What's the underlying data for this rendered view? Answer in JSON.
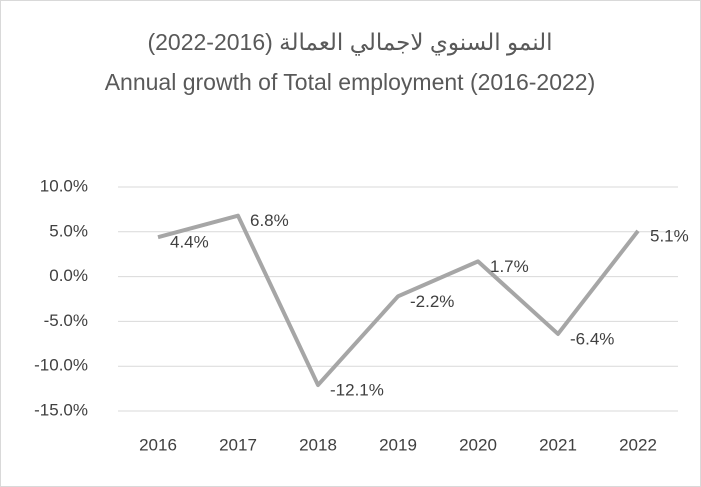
{
  "chart_data": {
    "type": "line",
    "title": [
      "النمو السنوي لاجمالي العمالة (2016-2022)",
      "Annual growth of Total employment (2016-2022)"
    ],
    "categories": [
      "2016",
      "2017",
      "2018",
      "2019",
      "2020",
      "2021",
      "2022"
    ],
    "series": [
      {
        "name": "Annual growth of Total employment",
        "color": "#a6a6a6",
        "values": [
          4.4,
          6.8,
          -12.1,
          -2.2,
          1.7,
          -6.4,
          5.1
        ],
        "value_labels": [
          "4.4%",
          "6.8%",
          "-12.1%",
          "-2.2%",
          "1.7%",
          "-6.4%",
          "5.1%"
        ]
      }
    ],
    "ylim": [
      -15,
      10
    ],
    "yticks": [
      {
        "value": -15,
        "label": "-15.0%"
      },
      {
        "value": -10,
        "label": "-10.0%"
      },
      {
        "value": -5,
        "label": "-5.0%"
      },
      {
        "value": 0,
        "label": "0.0%"
      },
      {
        "value": 5,
        "label": "5.0%"
      },
      {
        "value": 10,
        "label": "10.0%"
      }
    ],
    "grid": true
  }
}
